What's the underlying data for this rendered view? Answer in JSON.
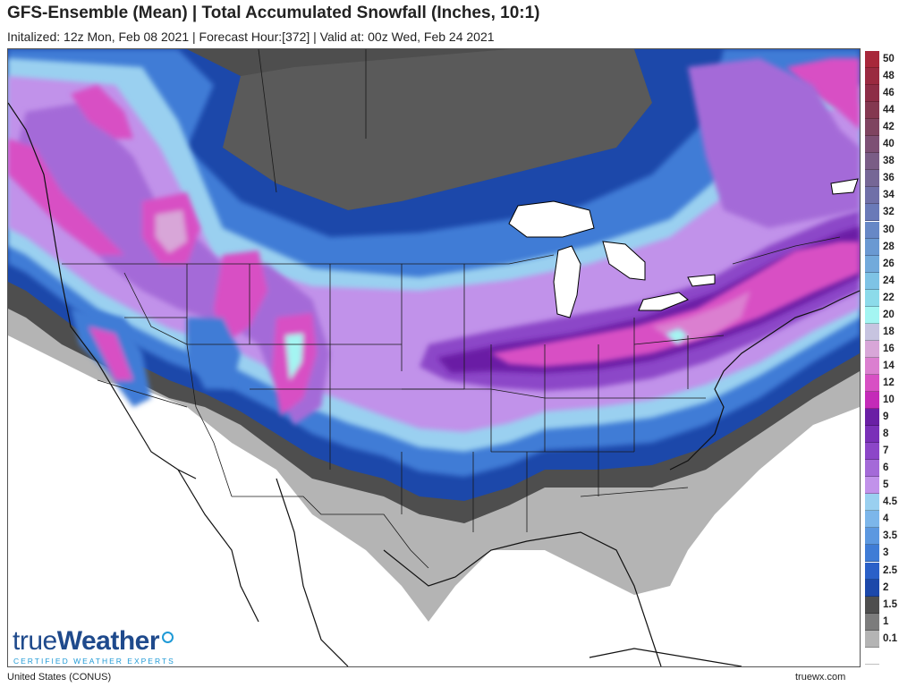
{
  "header": {
    "title": "GFS-Ensemble (Mean) | Total Accumulated Snowfall (Inches, 10:1)",
    "subtitle": "Initalized: 12z Mon, Feb 08 2021 | Forecast Hour:[372] | Valid at: 00z Wed, Feb 24 2021"
  },
  "legend": [
    {
      "label": "50",
      "color": "#a8283a"
    },
    {
      "label": "48",
      "color": "#9a2a40"
    },
    {
      "label": "46",
      "color": "#8d2d46"
    },
    {
      "label": "44",
      "color": "#843850"
    },
    {
      "label": "42",
      "color": "#7f4460"
    },
    {
      "label": "40",
      "color": "#7d5074"
    },
    {
      "label": "38",
      "color": "#7a5d86"
    },
    {
      "label": "36",
      "color": "#766796"
    },
    {
      "label": "34",
      "color": "#7070a8"
    },
    {
      "label": "32",
      "color": "#6a7ab8"
    },
    {
      "label": "30",
      "color": "#6788c6"
    },
    {
      "label": "28",
      "color": "#6a99d2"
    },
    {
      "label": "26",
      "color": "#72aadb"
    },
    {
      "label": "24",
      "color": "#7ec3e5"
    },
    {
      "label": "22",
      "color": "#8cdbea"
    },
    {
      "label": "20",
      "color": "#a4f5f2"
    },
    {
      "label": "18",
      "color": "#c7c4e0"
    },
    {
      "label": "16",
      "color": "#d8a6d8"
    },
    {
      "label": "14",
      "color": "#db7fd0"
    },
    {
      "label": "12",
      "color": "#d850c4"
    },
    {
      "label": "10",
      "color": "#c42ab8"
    },
    {
      "label": "9",
      "color": "#6a1fa5"
    },
    {
      "label": "8",
      "color": "#7a30b8"
    },
    {
      "label": "7",
      "color": "#8c46c8"
    },
    {
      "label": "6",
      "color": "#a46ad8"
    },
    {
      "label": "5",
      "color": "#c192ea"
    },
    {
      "label": "4.5",
      "color": "#9ad0f0"
    },
    {
      "label": "4",
      "color": "#7cb6ea"
    },
    {
      "label": "3.5",
      "color": "#5c98e0"
    },
    {
      "label": "3",
      "color": "#3f7cd6"
    },
    {
      "label": "2.5",
      "color": "#2a60c8"
    },
    {
      "label": "2",
      "color": "#1c48aa"
    },
    {
      "label": "1.5",
      "color": "#4e4e4e"
    },
    {
      "label": "1",
      "color": "#7c7c7c"
    },
    {
      "label": "0.1",
      "color": "#b4b4b4"
    },
    {
      "label": "",
      "color": "#ffffff"
    }
  ],
  "brand": {
    "name_light": "true",
    "name_bold": "Weather",
    "tagline": "CERTIFIED WEATHER EXPERTS"
  },
  "footer": {
    "region": "United States (CONUS)",
    "site": "truewx.com"
  }
}
